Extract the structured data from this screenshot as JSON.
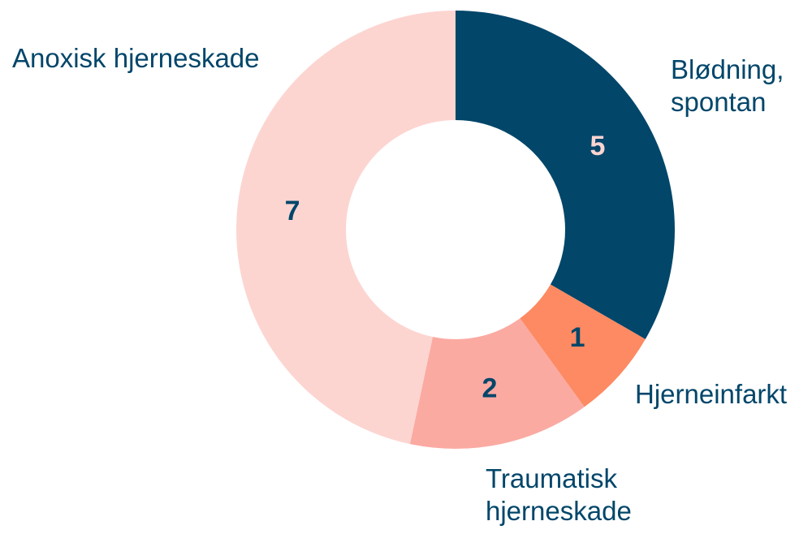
{
  "chart_data": {
    "type": "donut",
    "categories": [
      "Blødning, spontan",
      "Hjerneinfarkt",
      "Traumatisk hjerneskade",
      "Anoxisk hjerneskade"
    ],
    "values": [
      5,
      1,
      2,
      7
    ],
    "colors": [
      "#02466a",
      "#fd8a62",
      "#fbaaa2",
      "#fcd5d1"
    ],
    "value_label_colors": [
      "#fcd5d1",
      "#02466a",
      "#02466a",
      "#02466a"
    ]
  }
}
